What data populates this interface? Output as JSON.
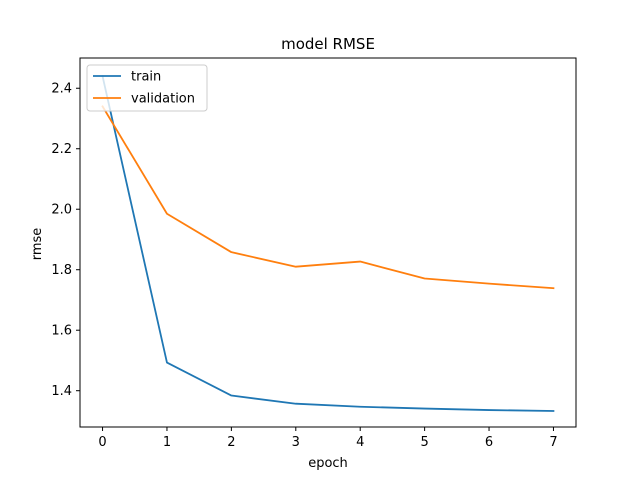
{
  "chart_data": {
    "type": "line",
    "title": "model RMSE",
    "xlabel": "epoch",
    "ylabel": "rmse",
    "x": [
      0,
      1,
      2,
      3,
      4,
      5,
      6,
      7
    ],
    "xlim": [
      -0.35,
      7.35
    ],
    "ylim": [
      1.28,
      2.5
    ],
    "xticks": [
      0,
      1,
      2,
      3,
      4,
      5,
      6,
      7
    ],
    "yticks": [
      1.4,
      1.6,
      1.8,
      2.0,
      2.2,
      2.4
    ],
    "ytick_labels": [
      "1.4",
      "1.6",
      "1.8",
      "2.0",
      "2.2",
      "2.4"
    ],
    "grid": false,
    "legend_position": "upper-left",
    "series": [
      {
        "name": "train",
        "color": "#1f77b4",
        "values": [
          2.44,
          1.493,
          1.384,
          1.357,
          1.347,
          1.341,
          1.336,
          1.333
        ]
      },
      {
        "name": "validation",
        "color": "#ff7f0e",
        "values": [
          2.34,
          1.985,
          1.858,
          1.81,
          1.827,
          1.771,
          1.754,
          1.739
        ]
      }
    ]
  }
}
